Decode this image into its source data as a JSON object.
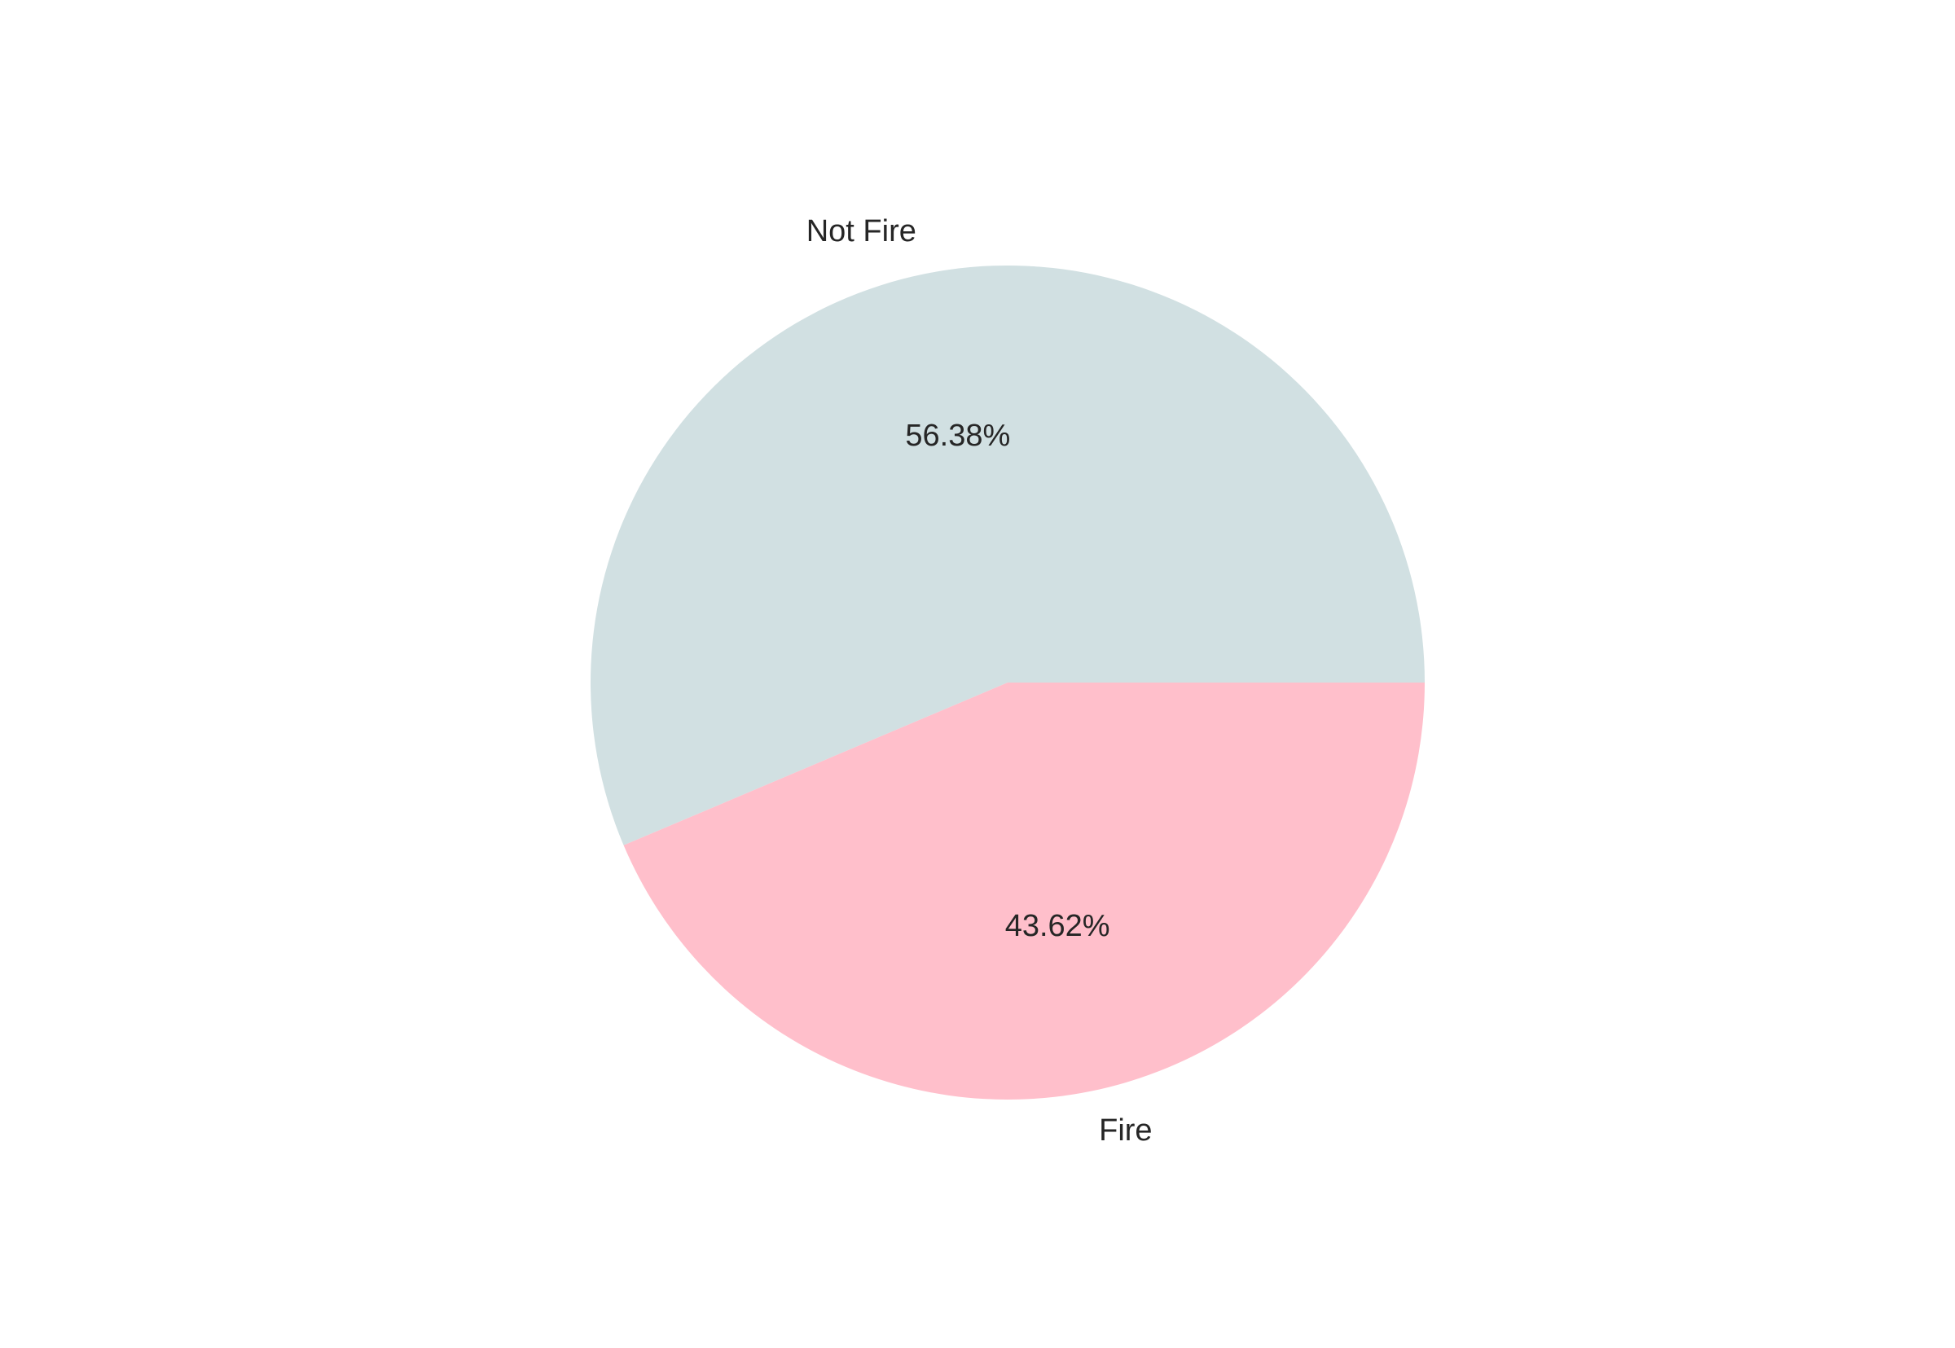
{
  "chart_data": {
    "type": "pie",
    "title": "",
    "labels": [
      "Not Fire",
      "Fire"
    ],
    "values": [
      56.38,
      43.62
    ],
    "value_labels": [
      "56.38%",
      "43.62%"
    ],
    "colors": [
      "#d1e0e2",
      "#ffbfcb"
    ],
    "start_angle": "3 o'clock, counter-clockwise",
    "legend": "none"
  }
}
